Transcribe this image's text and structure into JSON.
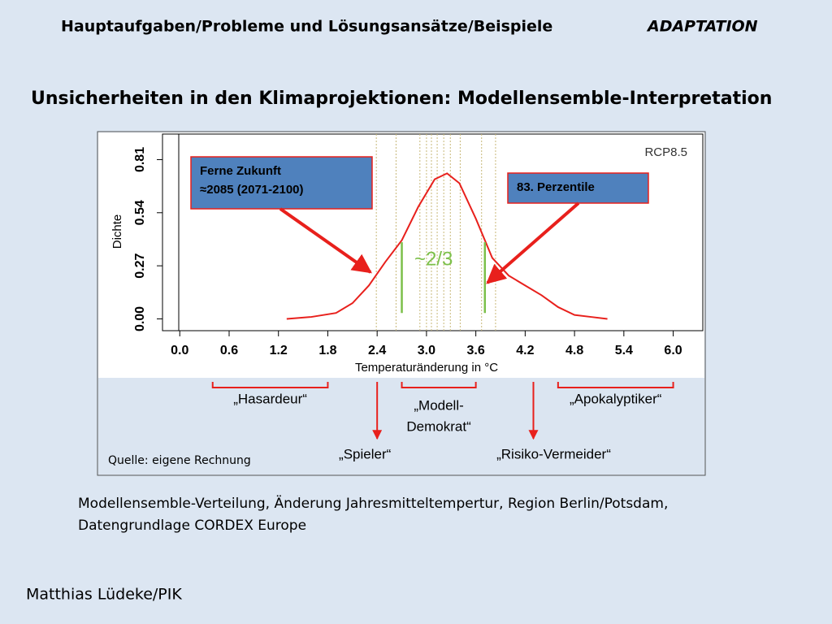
{
  "header": {
    "section": "Hauptaufgaben/Probleme und Lösungsansätze/Beispiele",
    "topic": "ADAPTATION"
  },
  "title": "Unsicherheiten in den Klimaprojektionen: Modellensemble-Interpretation",
  "chart_data": {
    "type": "line",
    "scenario": "RCP8.5",
    "x_label": "Temperaturänderung in °C",
    "y_label": "Dichte",
    "color": "#e8201c",
    "x": [
      1.3,
      1.6,
      1.9,
      2.1,
      2.3,
      2.5,
      2.7,
      2.9,
      3.1,
      3.25,
      3.4,
      3.6,
      3.8,
      4.0,
      4.2,
      4.4,
      4.6,
      4.8,
      5.0,
      5.2
    ],
    "values": [
      0.0,
      0.01,
      0.03,
      0.08,
      0.17,
      0.29,
      0.4,
      0.57,
      0.71,
      0.74,
      0.69,
      0.51,
      0.31,
      0.22,
      0.17,
      0.12,
      0.06,
      0.02,
      0.01,
      0.0
    ],
    "members": [
      2.39,
      2.63,
      2.92,
      3.0,
      3.06,
      3.13,
      3.21,
      3.29,
      3.41,
      3.67,
      3.84
    ],
    "percentiles": [
      {
        "x": 2.7,
        "y": 0.39
      },
      {
        "x": 3.71,
        "y": 0.39
      }
    ],
    "xlim": [
      -0.21,
      6.36
    ],
    "ylim": [
      -0.06,
      0.94
    ],
    "xticks": [
      {
        "value": 0,
        "label": "0.0"
      },
      {
        "value": 0.6,
        "label": "0.6"
      },
      {
        "value": 1.2,
        "label": "1.2"
      },
      {
        "value": 1.8,
        "label": "1.8"
      },
      {
        "value": 2.4,
        "label": "2.4"
      },
      {
        "value": 3.0,
        "label": "3.0"
      },
      {
        "value": 3.6,
        "label": "3.6"
      },
      {
        "value": 4.2,
        "label": "4.2"
      },
      {
        "value": 4.8,
        "label": "4.8"
      },
      {
        "value": 5.4,
        "label": "5.4"
      },
      {
        "value": 6.0,
        "label": "6.0"
      }
    ],
    "yticks": [
      {
        "value": 0,
        "label": "0.00"
      },
      {
        "value": 0.27,
        "label": "0.27"
      },
      {
        "value": 0.54,
        "label": "0.54"
      },
      {
        "value": 0.81,
        "label": "0.81"
      }
    ],
    "annotations": {
      "period": [
        "Ferne Zukunft",
        "≈2085 (2071-2100)"
      ],
      "percentile": "83. Perzentile",
      "share": "~2/3"
    },
    "groups": [
      {
        "label": [
          "„Hasardeur“"
        ],
        "range": [
          0.4,
          1.8
        ]
      },
      {
        "label": [
          "„Modell-",
          "Demokrat“"
        ],
        "range": [
          2.7,
          3.6
        ]
      },
      {
        "label": [
          "„Apokalyptiker“"
        ],
        "range": [
          4.6,
          6.0
        ]
      }
    ],
    "arrows": [
      {
        "label": "„Spieler“",
        "x": 2.4
      },
      {
        "label": "„Risiko-Vermeider“",
        "x": 4.3
      }
    ],
    "source": "Quelle: eigene Rechnung"
  },
  "caption": [
    "Modellensemble-Verteilung, Änderung Jahresmitteltempertur, Region Berlin/Potsdam,",
    "Datengrundlage CORDEX Europe"
  ],
  "author": "Matthias Lüdeke/PIK"
}
